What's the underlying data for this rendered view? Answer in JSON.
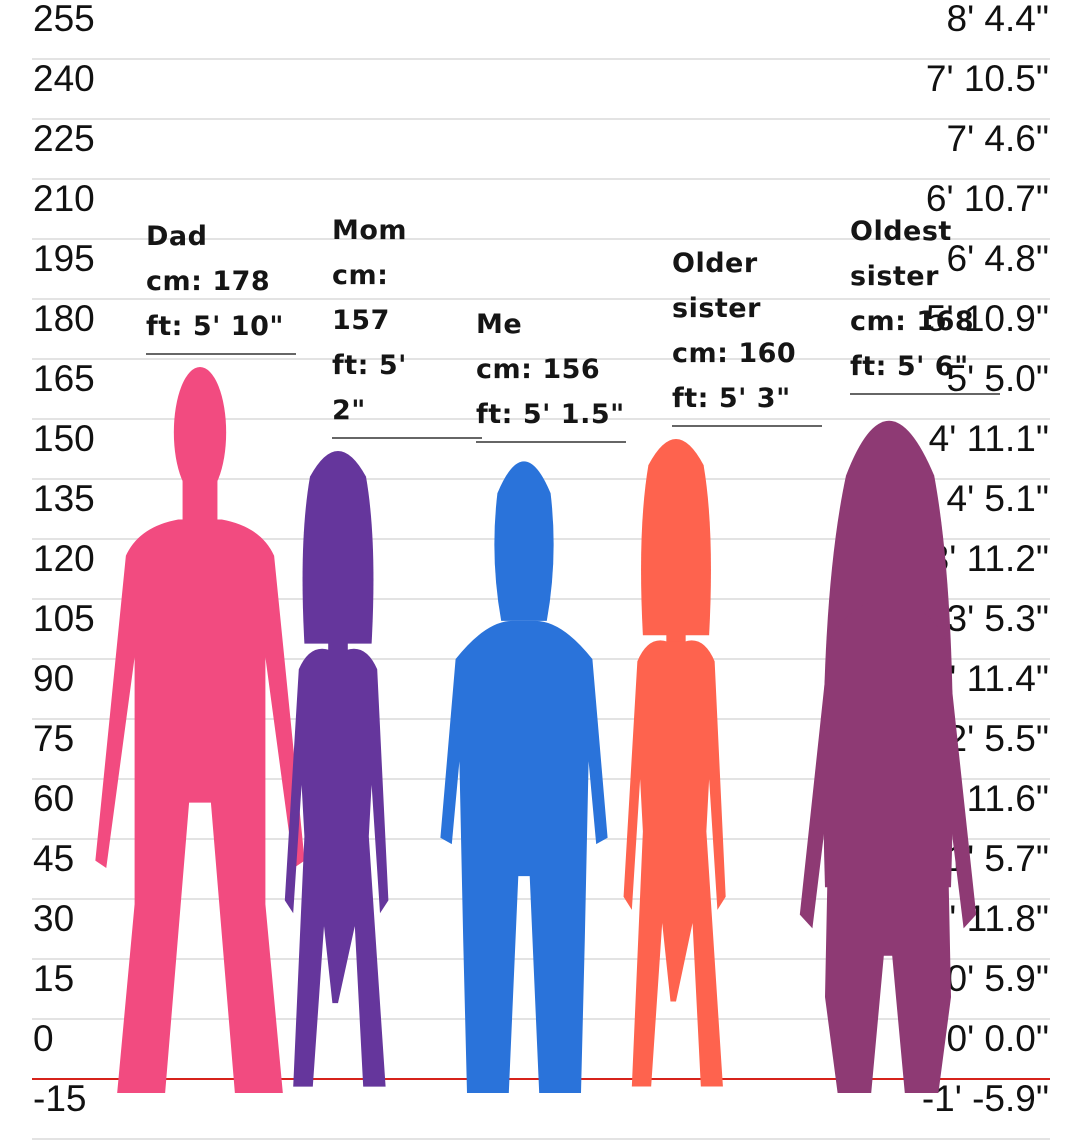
{
  "chart_data": {
    "type": "bar",
    "title": "",
    "xlabel": "",
    "ylabel": "",
    "left_axis_ticks": [
      "255",
      "240",
      "225",
      "210",
      "195",
      "180",
      "165",
      "150",
      "135",
      "120",
      "105",
      "90",
      "75",
      "60",
      "45",
      "30",
      "15",
      "0",
      "-15"
    ],
    "right_axis_ticks": [
      "8' 4.4\"",
      "7' 10.5\"",
      "7' 4.6\"",
      "6' 10.7\"",
      "6' 4.8\"",
      "5' 10.9\"",
      "5' 5.0\"",
      "4' 11.1\"",
      "4' 5.1\"",
      "3' 11.2\"",
      "3' 5.3\"",
      "2' 11.4\"",
      "2' 5.5\"",
      "1' 11.6\"",
      "1' 5.7\"",
      "0' 11.8\"",
      "0' 5.9\"",
      "0' 0.0\"",
      "-1' -5.9\""
    ],
    "ylim": [
      -15,
      255
    ],
    "categories": [
      "Dad",
      "Mom",
      "Me",
      "Older sister",
      "Oldest sister"
    ],
    "values": [
      178,
      157,
      156,
      160,
      168
    ],
    "people": [
      {
        "name": "Dad",
        "cm_label": "cm: 178",
        "ft_label": "ft: 5' 10\"",
        "color": "#f24b80",
        "figure": "man"
      },
      {
        "name": "Mom",
        "cm_label": "cm:\n157",
        "ft_label": "ft: 5'\n2\"",
        "color": "#65369c",
        "figure": "woman-bob"
      },
      {
        "name": "Me",
        "cm_label": "cm: 156",
        "ft_label": "ft: 5' 1.5\"",
        "color": "#2a73da",
        "figure": "boy"
      },
      {
        "name": "Older sister",
        "cm_label": "cm: 160",
        "ft_label": "ft: 5' 3\"",
        "color": "#fe634e",
        "figure": "woman-bob"
      },
      {
        "name": "Oldest sister",
        "cm_label": "cm: 168",
        "ft_label": "ft: 5' 6\"",
        "color": "#8e3a74",
        "figure": "woman-long"
      }
    ],
    "baseline_color": "#d6231b",
    "grid": true
  }
}
